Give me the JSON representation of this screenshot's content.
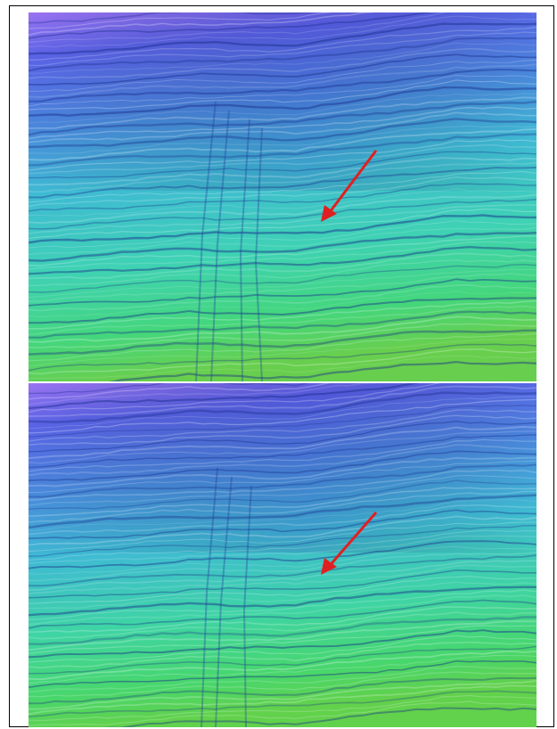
{
  "figure": {
    "panels": [
      {
        "id": "top",
        "annotation": "red-arrow"
      },
      {
        "id": "bottom",
        "annotation": "red-arrow"
      }
    ],
    "colors": {
      "top_band": "#8a6cf0",
      "upper": "#4e5fe0",
      "middle": "#3fb6d6",
      "lower": "#3fd4a8",
      "bottom": "#56d65a",
      "arrow": "#e02020"
    }
  }
}
